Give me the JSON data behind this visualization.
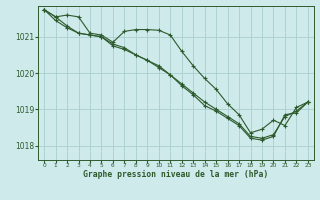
{
  "title": "Graphe pression niveau de la mer (hPa)",
  "background_color": "#ceeaea",
  "grid_color": "#aacfcf",
  "line_color": "#2d5a2d",
  "xlim": [
    -0.5,
    23.5
  ],
  "ylim": [
    1017.6,
    1021.85
  ],
  "yticks": [
    1018,
    1019,
    1020,
    1021
  ],
  "xticks": [
    0,
    1,
    2,
    3,
    4,
    5,
    6,
    7,
    8,
    9,
    10,
    11,
    12,
    13,
    14,
    15,
    16,
    17,
    18,
    19,
    20,
    21,
    22,
    23
  ],
  "line1_x": [
    0,
    1,
    2,
    3,
    4,
    5,
    6,
    7,
    8,
    9,
    10,
    11,
    12,
    13,
    14,
    15,
    16,
    17,
    18,
    19,
    20,
    21,
    22,
    23
  ],
  "line1_y": [
    1021.75,
    1021.55,
    1021.6,
    1021.55,
    1021.1,
    1021.05,
    1020.85,
    1021.15,
    1021.2,
    1021.2,
    1021.18,
    1021.05,
    1020.6,
    1020.2,
    1019.85,
    1019.55,
    1019.15,
    1018.85,
    1018.35,
    1018.45,
    1018.7,
    1018.55,
    1019.05,
    1019.2
  ],
  "line2_x": [
    0,
    1,
    2,
    3,
    4,
    5,
    6,
    7,
    8,
    9,
    10,
    11,
    12,
    13,
    14,
    15,
    16,
    17,
    18,
    19,
    20,
    21,
    22,
    23
  ],
  "line2_y": [
    1021.75,
    1021.45,
    1021.25,
    1021.1,
    1021.05,
    1021.0,
    1020.8,
    1020.7,
    1020.5,
    1020.35,
    1020.15,
    1019.95,
    1019.7,
    1019.45,
    1019.2,
    1019.0,
    1018.8,
    1018.6,
    1018.25,
    1018.2,
    1018.3,
    1018.8,
    1018.95,
    1019.2
  ],
  "line3_x": [
    0,
    1,
    2,
    3,
    4,
    5,
    6,
    7,
    8,
    9,
    10,
    11,
    12,
    13,
    14,
    15,
    16,
    17,
    18,
    19,
    20,
    21,
    22,
    23
  ],
  "line3_y": [
    1021.75,
    1021.55,
    1021.3,
    1021.1,
    1021.05,
    1021.0,
    1020.75,
    1020.65,
    1020.5,
    1020.35,
    1020.2,
    1019.95,
    1019.65,
    1019.4,
    1019.1,
    1018.95,
    1018.75,
    1018.55,
    1018.2,
    1018.15,
    1018.25,
    1018.85,
    1018.9,
    1019.2
  ]
}
